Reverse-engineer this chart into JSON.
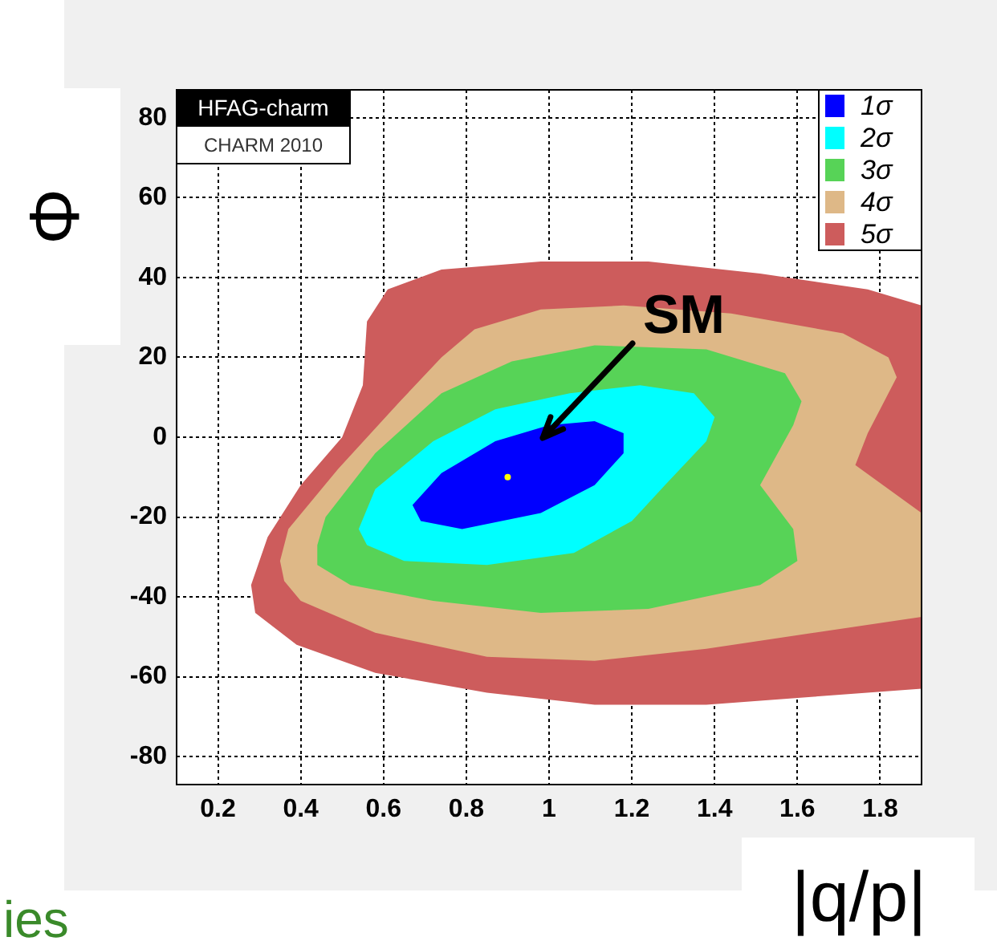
{
  "chart_data": {
    "type": "area",
    "xlabel": "|q/p|",
    "ylabel": "Φ",
    "xlim": [
      0.1,
      1.9
    ],
    "ylim": [
      -87,
      87
    ],
    "xticks": [
      0.2,
      0.4,
      0.6,
      0.8,
      1,
      1.2,
      1.4,
      1.6,
      1.8
    ],
    "yticks": [
      -80,
      -60,
      -40,
      -20,
      0,
      20,
      40,
      60,
      80
    ],
    "grid": true,
    "legend": "top right",
    "annotations": [
      "SM",
      "HFAG-charm",
      "CHARM 2010",
      "ies"
    ],
    "series": [
      {
        "name": "1σ",
        "color": "#0000ff",
        "x": [
          0.67,
          0.74,
          0.87,
          1.0,
          1.11,
          1.18,
          1.18,
          1.11,
          0.98,
          0.79,
          0.69
        ],
        "values": [
          -17,
          -9,
          -1,
          3,
          4,
          1,
          -4,
          -12,
          -19,
          -23,
          -21
        ]
      },
      {
        "name": "2σ",
        "color": "#00ffff",
        "x": [
          0.54,
          0.58,
          0.72,
          0.87,
          1.05,
          1.22,
          1.35,
          1.4,
          1.38,
          1.28,
          1.2,
          1.06,
          0.85,
          0.65,
          0.56
        ],
        "values": [
          -23,
          -13,
          -1,
          7,
          11,
          13,
          11,
          5,
          -1,
          -12,
          -21,
          -29,
          -32,
          -31,
          -27
        ]
      },
      {
        "name": "3σ",
        "color": "#57d357",
        "x": [
          0.44,
          0.46,
          0.58,
          0.74,
          0.91,
          1.11,
          1.38,
          1.57,
          1.61,
          1.59,
          1.51,
          1.59,
          1.6,
          1.51,
          1.24,
          0.98,
          0.72,
          0.52,
          0.44
        ],
        "values": [
          -27,
          -20,
          -4,
          11,
          19,
          23,
          22,
          16,
          9,
          3,
          -12,
          -23,
          -31,
          -37,
          -43,
          -44,
          -41,
          -37,
          -32
        ]
      },
      {
        "name": "4σ",
        "color": "#deb887",
        "x": [
          0.35,
          0.37,
          0.49,
          0.64,
          0.74,
          0.82,
          0.98,
          1.18,
          1.44,
          1.71,
          1.82,
          1.84,
          1.77,
          1.74,
          1.9,
          1.9,
          1.64,
          1.38,
          1.11,
          0.85,
          0.58,
          0.4,
          0.36
        ],
        "values": [
          -31,
          -23,
          -8,
          9,
          20,
          27,
          32,
          33,
          31,
          26,
          20,
          15,
          1,
          -7,
          -19,
          -45,
          -49,
          -53,
          -56,
          -55,
          -49,
          -41,
          -36
        ]
      },
      {
        "name": "5σ",
        "color": "#cd5c5c",
        "x": [
          0.28,
          0.32,
          0.4,
          0.5,
          0.55,
          0.56,
          0.61,
          0.74,
          0.98,
          1.24,
          1.51,
          1.77,
          1.9,
          1.9,
          1.64,
          1.38,
          1.11,
          0.85,
          0.58,
          0.39,
          0.29
        ],
        "values": [
          -37,
          -25,
          -12,
          0,
          13,
          29,
          37,
          42,
          44,
          44,
          41,
          37,
          33,
          -63,
          -65,
          -67,
          -67,
          -64,
          -59,
          -52,
          -44
        ]
      },
      {
        "type": "scatter",
        "color": "#ffff00",
        "x": [
          0.9
        ],
        "values": [
          -10
        ]
      }
    ]
  }
}
